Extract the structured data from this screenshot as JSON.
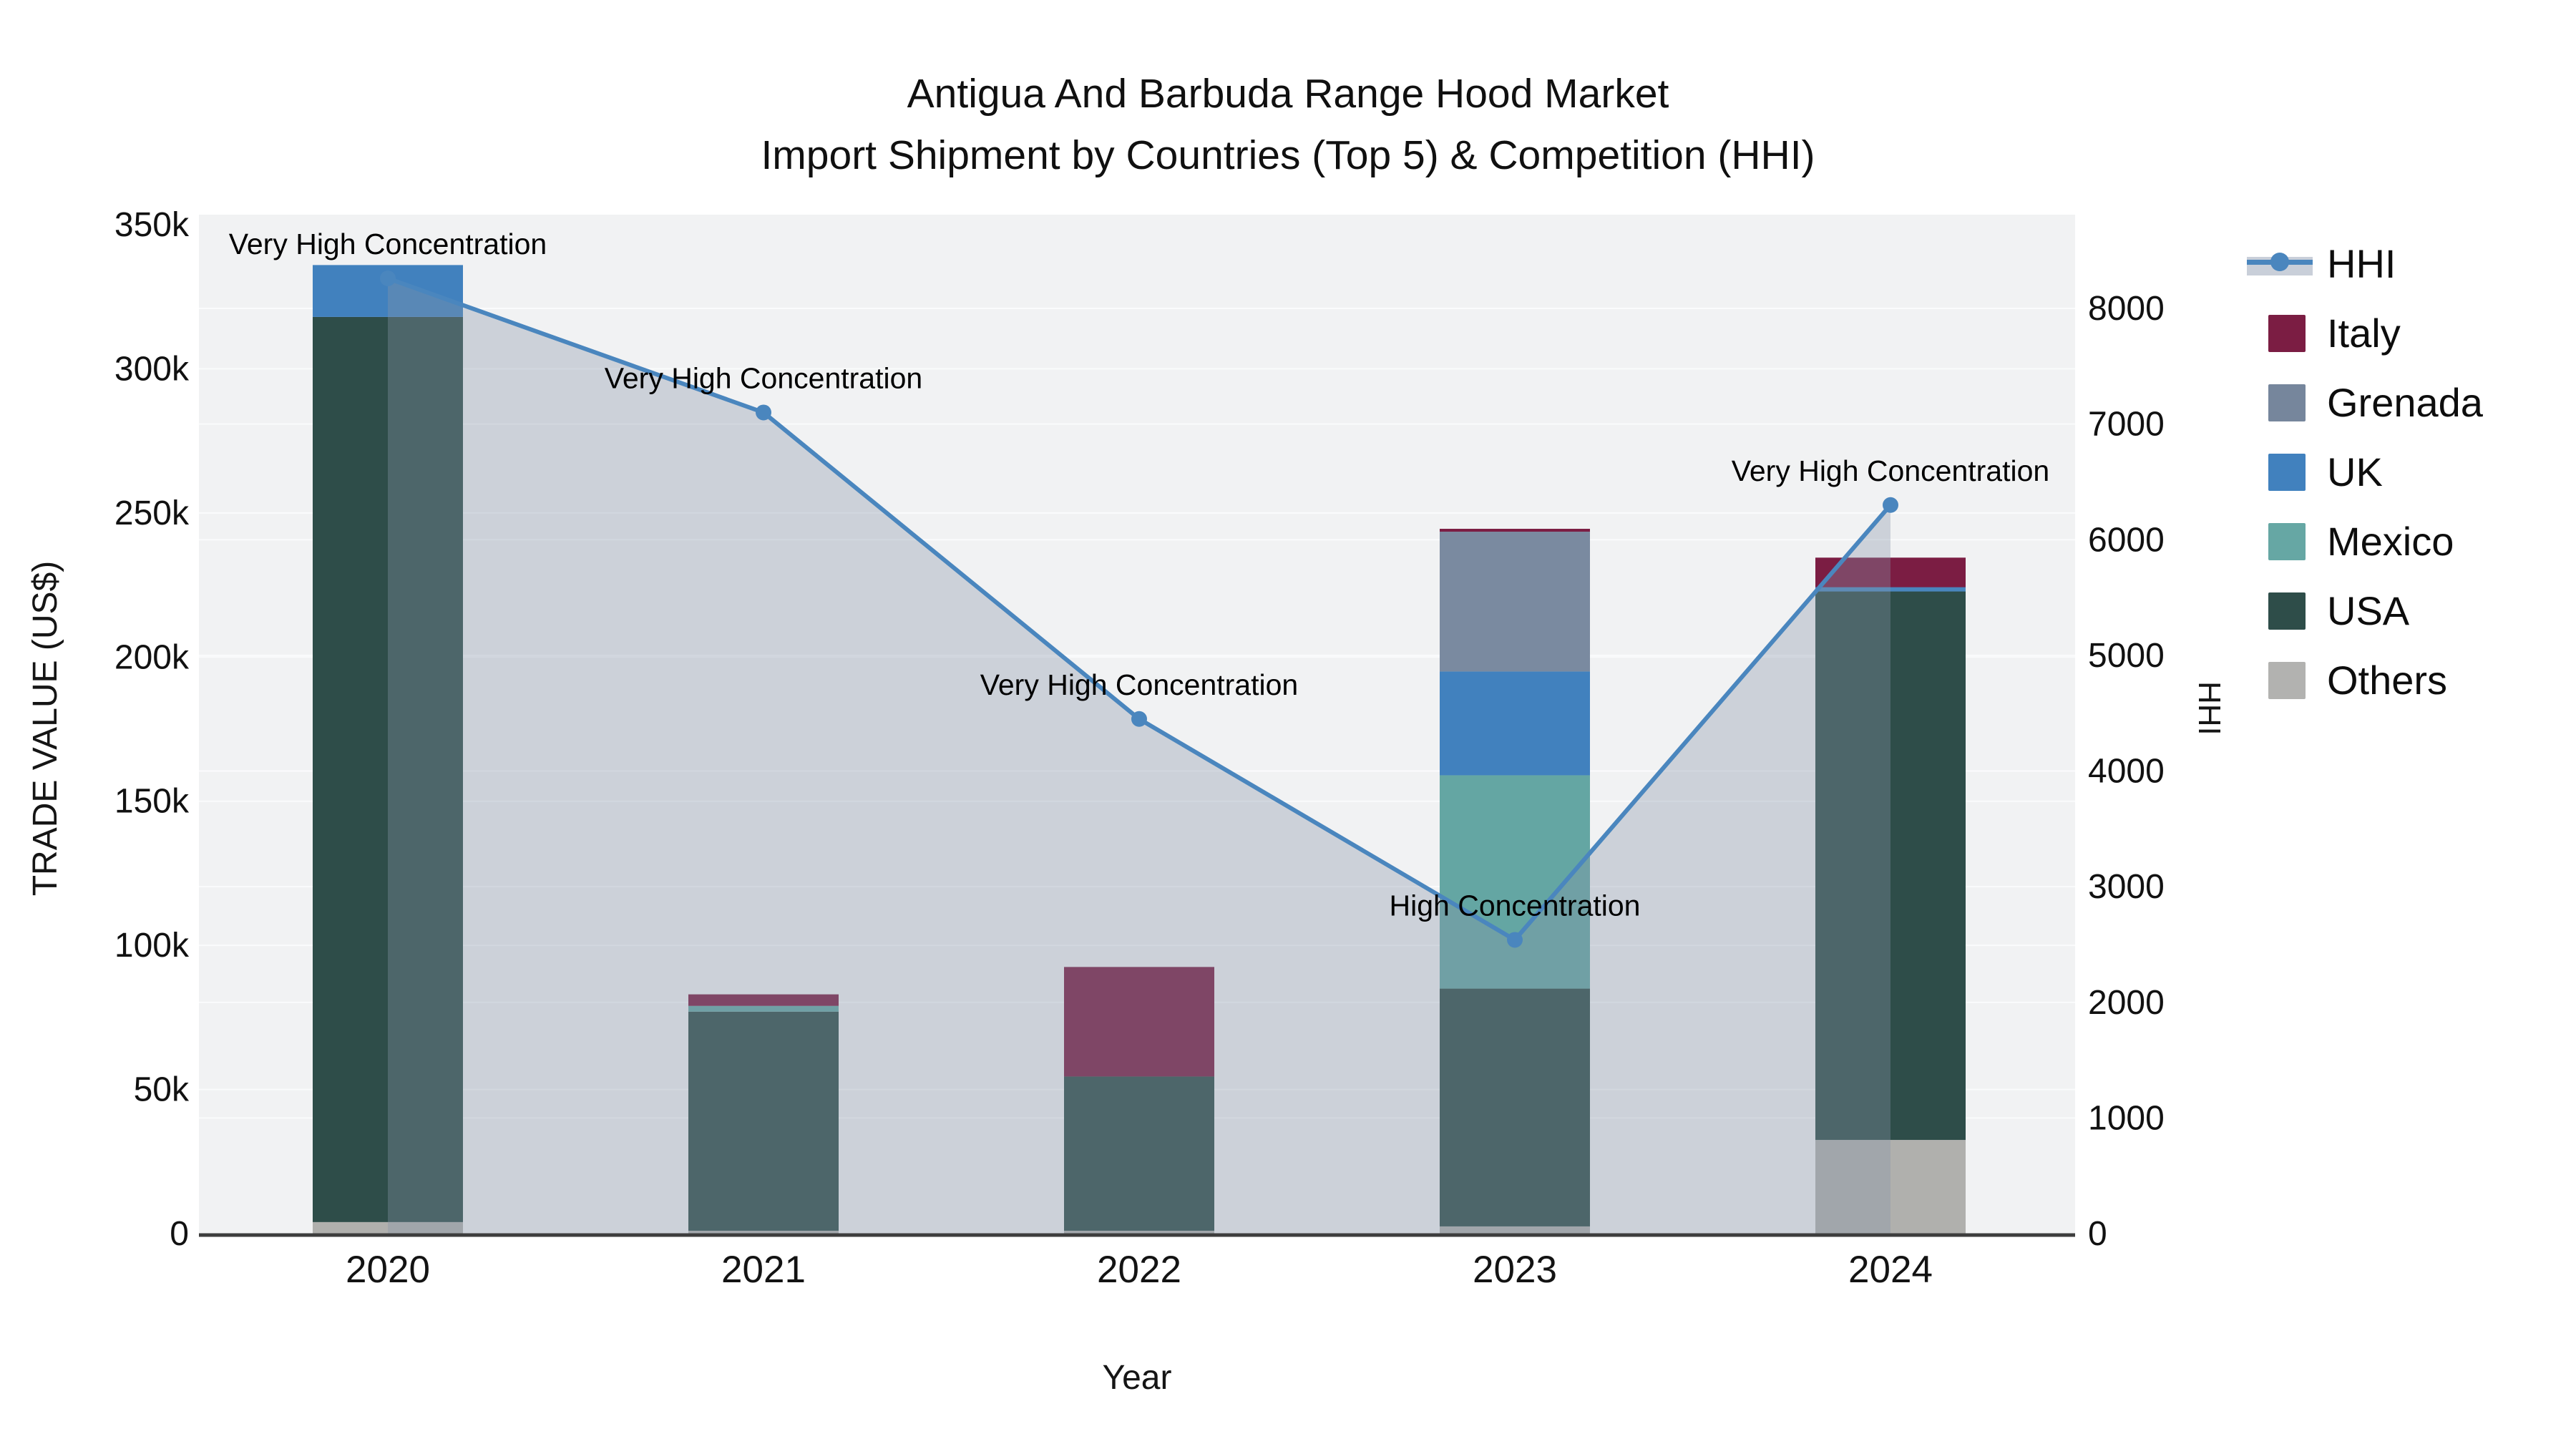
{
  "chart_data": {
    "type": "combo-stacked-bar-line",
    "title": "Antigua And Barbuda Range Hood Market",
    "subtitle": "Import Shipment by Countries (Top 5) & Competition (HHI)",
    "categories": [
      "2020",
      "2021",
      "2022",
      "2023",
      "2024"
    ],
    "xlabel": "Year",
    "y_left": {
      "label": "TRADE VALUE (US$)",
      "ticks": [
        "0",
        "50k",
        "100k",
        "150k",
        "200k",
        "250k",
        "300k",
        "350k"
      ],
      "tick_values": [
        0,
        50000,
        100000,
        150000,
        200000,
        250000,
        300000,
        350000
      ],
      "max": 350000
    },
    "y_right": {
      "label": "HHI",
      "ticks": [
        "0",
        "1000",
        "2000",
        "3000",
        "4000",
        "5000",
        "6000",
        "7000",
        "8000"
      ],
      "tick_values": [
        0,
        1000,
        2000,
        3000,
        4000,
        5000,
        6000,
        7000,
        8000
      ],
      "max": 8000
    },
    "bar_series": [
      {
        "name": "Others",
        "color": "#b0b0ad",
        "values": [
          4000,
          1000,
          1000,
          2500,
          32500
        ]
      },
      {
        "name": "USA",
        "color": "#2e4d49",
        "values": [
          314000,
          76000,
          53500,
          82500,
          191000
        ]
      },
      {
        "name": "Mexico",
        "color": "#64a6a3",
        "values": [
          0,
          2000,
          0,
          74000,
          0
        ]
      },
      {
        "name": "UK",
        "color": "#4181be",
        "values": [
          18000,
          0,
          0,
          36000,
          0
        ]
      },
      {
        "name": "Grenada",
        "color": "#7a8aa0",
        "values": [
          0,
          0,
          0,
          48500,
          0
        ]
      },
      {
        "name": "Italy",
        "color": "#7b1d43",
        "values": [
          0,
          4000,
          38000,
          1000,
          11000
        ]
      }
    ],
    "line_series": {
      "name": "HHI",
      "color": "#4a86be",
      "fill_color": "rgba(135,148,170,0.35)",
      "values": [
        8260,
        7100,
        4450,
        2540,
        6300
      ]
    },
    "annotations": [
      {
        "year": "2020",
        "text": "Very High Concentration"
      },
      {
        "year": "2021",
        "text": "Very High Concentration"
      },
      {
        "year": "2022",
        "text": "Very High Concentration"
      },
      {
        "year": "2023",
        "text": "High Concentration"
      },
      {
        "year": "2024",
        "text": "Very High Concentration"
      }
    ],
    "extra_marks": [
      {
        "type": "horizontal-segment",
        "year": "2024",
        "trade_value": 223500,
        "color": "#4a86be"
      }
    ],
    "legend": [
      {
        "label": "HHI",
        "type": "line",
        "color": "#4a86be",
        "band": "#c9cfd9"
      },
      {
        "label": "Italy",
        "type": "swatch",
        "color": "#7b1d43"
      },
      {
        "label": "Grenada",
        "type": "swatch",
        "color": "#76869c"
      },
      {
        "label": "UK",
        "type": "swatch",
        "color": "#4181be"
      },
      {
        "label": "Mexico",
        "type": "swatch",
        "color": "#66a7a4"
      },
      {
        "label": "USA",
        "type": "swatch",
        "color": "#2e4d49"
      },
      {
        "label": "Others",
        "type": "swatch",
        "color": "#b2b2b0"
      }
    ],
    "grid": "on",
    "legend_position": "right",
    "plot_bg": "#f1f2f3",
    "grid_color": "#fafbfc",
    "axis_line_color": "#3d3d3d"
  }
}
